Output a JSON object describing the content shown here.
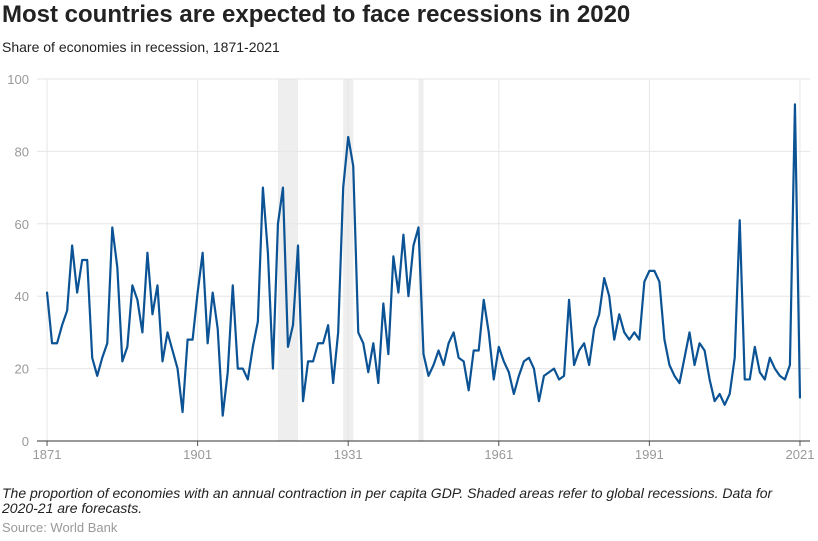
{
  "title": "Most countries are expected to face recessions in 2020",
  "subtitle": "Share of economies in recession, 1871-2021",
  "note": "The proportion of economies with an annual contraction in per capita GDP. Shaded areas refer to global recessions. Data for 2020-21 are forecasts.",
  "source": "Source: World Bank",
  "colors": {
    "line": "#0b5394",
    "shade": "#eeeeee",
    "grid": "#e6e6e6",
    "tick_text": "#999999"
  },
  "chart_data": {
    "type": "line",
    "title": "Most countries are expected to face recessions in 2020",
    "subtitle": "Share of economies in recession, 1871-2021",
    "xlabel": "",
    "ylabel": "",
    "xlim": [
      1869,
      2023
    ],
    "ylim": [
      0,
      100
    ],
    "x_ticks": [
      1871,
      1901,
      1931,
      1961,
      1991,
      2021
    ],
    "y_ticks": [
      0,
      20,
      40,
      60,
      80,
      100
    ],
    "grid": true,
    "shaded_periods": [
      [
        1917,
        1921
      ],
      [
        1930,
        1932
      ],
      [
        1945,
        1946
      ]
    ],
    "series": [
      {
        "x": [
          1871,
          1872,
          1873,
          1874,
          1875,
          1876,
          1877,
          1878,
          1879,
          1880,
          1881,
          1882,
          1883,
          1884,
          1885,
          1886,
          1887,
          1888,
          1889,
          1890,
          1891,
          1892,
          1893,
          1894,
          1895,
          1896,
          1897,
          1898,
          1899,
          1900,
          1901,
          1902,
          1903,
          1904,
          1905,
          1906,
          1907,
          1908,
          1909,
          1910,
          1911,
          1912,
          1913,
          1914,
          1915,
          1916,
          1917,
          1918,
          1919,
          1920,
          1921,
          1922,
          1923,
          1924,
          1925,
          1926,
          1927,
          1928,
          1929,
          1930,
          1931,
          1932,
          1933,
          1934,
          1935,
          1936,
          1937,
          1938,
          1939,
          1940,
          1941,
          1942,
          1943,
          1944,
          1945,
          1946,
          1947,
          1948,
          1949,
          1950,
          1951,
          1952,
          1953,
          1954,
          1955,
          1956,
          1957,
          1958,
          1959,
          1960,
          1961,
          1962,
          1963,
          1964,
          1965,
          1966,
          1967,
          1968,
          1969,
          1970,
          1971,
          1972,
          1973,
          1974,
          1975,
          1976,
          1977,
          1978,
          1979,
          1980,
          1981,
          1982,
          1983,
          1984,
          1985,
          1986,
          1987,
          1988,
          1989,
          1990,
          1991,
          1992,
          1993,
          1994,
          1995,
          1996,
          1997,
          1998,
          1999,
          2000,
          2001,
          2002,
          2003,
          2004,
          2005,
          2006,
          2007,
          2008,
          2009,
          2010,
          2011,
          2012,
          2013,
          2014,
          2015,
          2016,
          2017,
          2018,
          2019,
          2020,
          2021
        ],
        "values": [
          41,
          27,
          27,
          32,
          36,
          54,
          41,
          50,
          50,
          23,
          18,
          23,
          27,
          59,
          48,
          22,
          26,
          43,
          39,
          30,
          52,
          35,
          43,
          22,
          30,
          25,
          20,
          8,
          28,
          28,
          41,
          52,
          27,
          41,
          31,
          7,
          19,
          43,
          20,
          20,
          17,
          26,
          33,
          70,
          52,
          20,
          60,
          70,
          26,
          32,
          54,
          11,
          22,
          22,
          27,
          27,
          32,
          16,
          30,
          70,
          84,
          76,
          30,
          27,
          19,
          27,
          16,
          38,
          24,
          51,
          41,
          57,
          40,
          54,
          59,
          24,
          18,
          21,
          25,
          21,
          27,
          30,
          23,
          22,
          14,
          25,
          25,
          39,
          30,
          17,
          26,
          22,
          19,
          13,
          18,
          22,
          23,
          20,
          11,
          18,
          19,
          20,
          17,
          18,
          39,
          21,
          25,
          27,
          21,
          31,
          35,
          45,
          40,
          28,
          35,
          30,
          28,
          30,
          28,
          44,
          47,
          47,
          44,
          28,
          21,
          18,
          16,
          23,
          30,
          21,
          27,
          25,
          17,
          11,
          13,
          10,
          13,
          23,
          61,
          17,
          17,
          26,
          19,
          17,
          23,
          20,
          18,
          17,
          21,
          93,
          12
        ]
      }
    ]
  }
}
